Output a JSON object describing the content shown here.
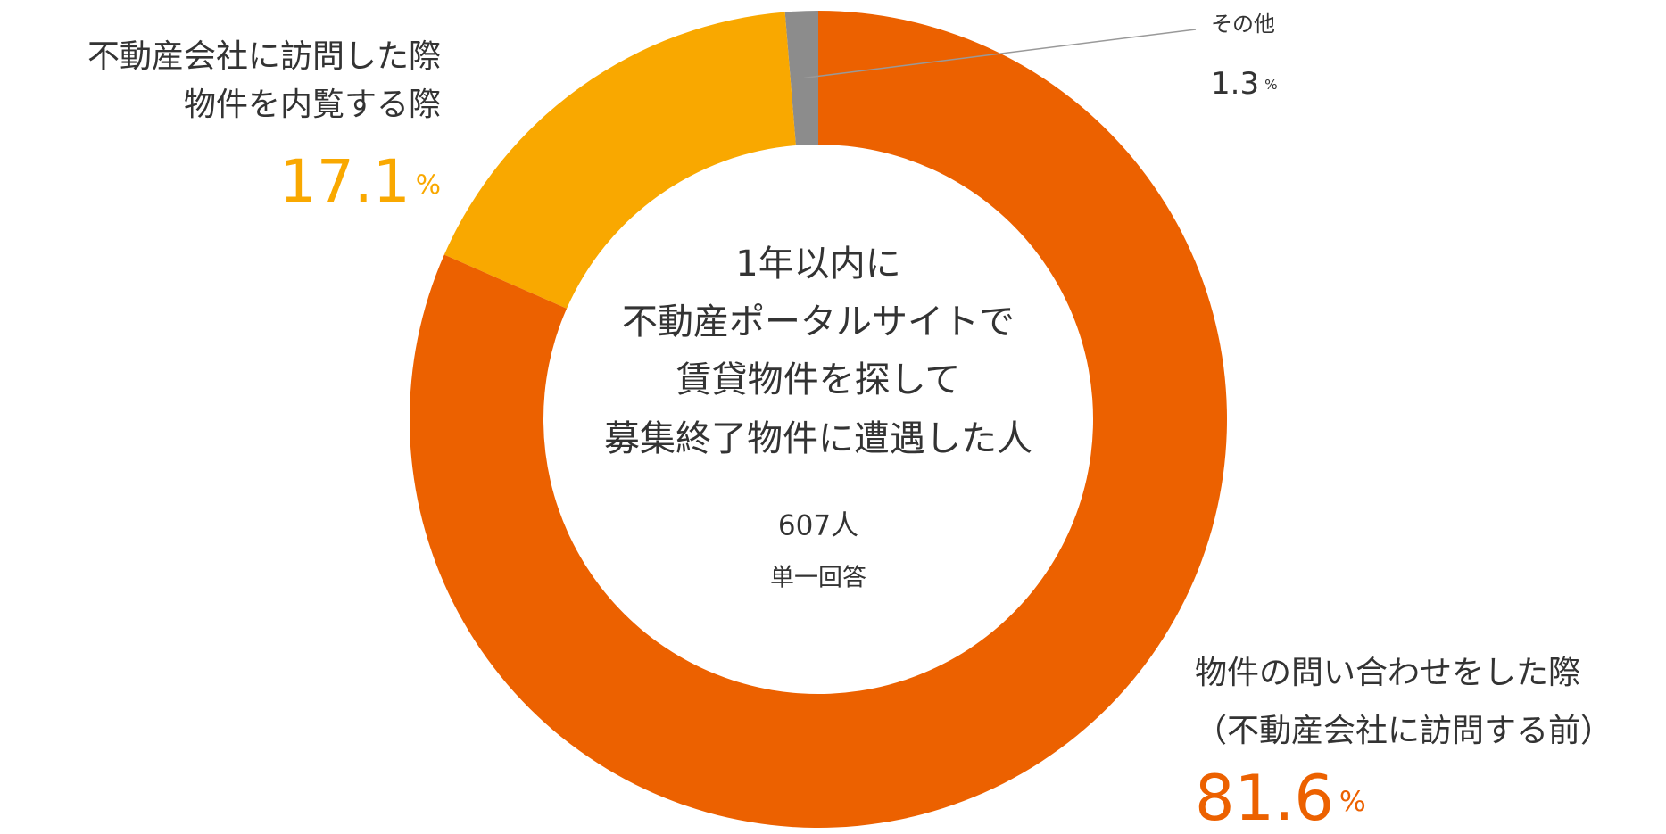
{
  "chart_data": {
    "type": "donut",
    "categories": [
      [
        "物件の問い合わせをした際",
        "（不動産会社に訪問する前）"
      ],
      [
        "不動産会社に訪問した際",
        "物件を内覧する際"
      ],
      [
        "その他"
      ]
    ],
    "values": [
      81.6,
      17.1,
      1.3
    ],
    "unit": "%",
    "colors": [
      "#ec6100",
      "#f9a800",
      "#8c8c8c"
    ],
    "center_text": [
      "1年以内に",
      "不動産ポータルサイトで",
      "賃貸物件を探して",
      "募集終了物件に遭遇した人"
    ],
    "sample": "607人",
    "note": "単一回答"
  }
}
